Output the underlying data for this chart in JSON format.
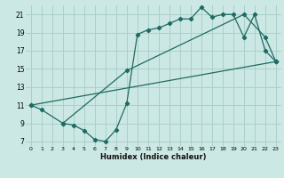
{
  "xlabel": "Humidex (Indice chaleur)",
  "bg_color": "#cce8e4",
  "grid_color": "#aacfcb",
  "line_color": "#1d6b62",
  "xlim": [
    -0.5,
    23.5
  ],
  "ylim": [
    6.5,
    22.0
  ],
  "xticks": [
    0,
    1,
    2,
    3,
    4,
    5,
    6,
    7,
    8,
    9,
    10,
    11,
    12,
    13,
    14,
    15,
    16,
    17,
    18,
    19,
    20,
    21,
    22,
    23
  ],
  "yticks": [
    7,
    9,
    11,
    13,
    15,
    17,
    19,
    21
  ],
  "line1_x": [
    0,
    1,
    3,
    4,
    5,
    6,
    7,
    8,
    9,
    10,
    11,
    12,
    13,
    14,
    15,
    16,
    17,
    18,
    19,
    20,
    21,
    22,
    23
  ],
  "line1_y": [
    11,
    10.5,
    9.0,
    8.8,
    8.2,
    7.2,
    7.0,
    8.3,
    11.2,
    18.8,
    19.3,
    19.5,
    20.0,
    20.5,
    20.5,
    21.8,
    20.7,
    21.0,
    21.0,
    18.5,
    21.0,
    17.0,
    15.8
  ],
  "line2_x": [
    0,
    23
  ],
  "line2_y": [
    11,
    15.8
  ],
  "line3_x": [
    3,
    9,
    20,
    22,
    23
  ],
  "line3_y": [
    9.0,
    14.8,
    21.0,
    18.5,
    15.8
  ]
}
